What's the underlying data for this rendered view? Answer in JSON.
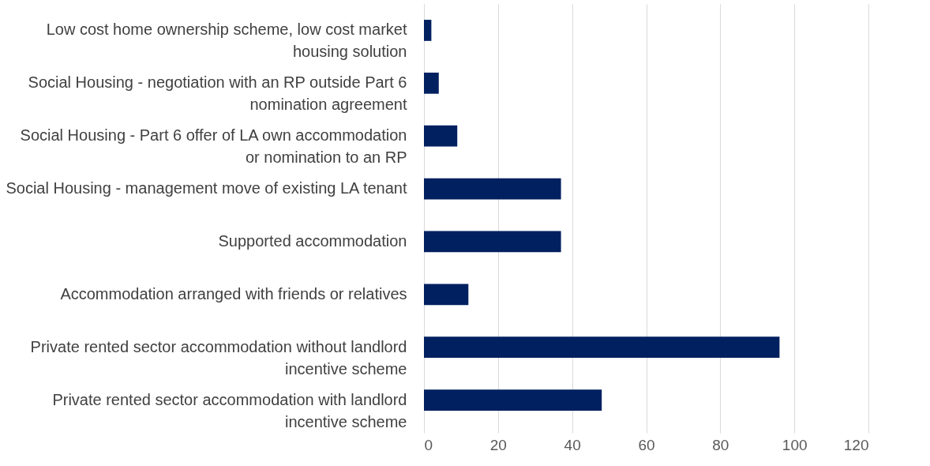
{
  "chart_data": {
    "type": "bar",
    "orientation": "horizontal",
    "categories": [
      "Low cost home ownership scheme, low cost market housing solution",
      "Social Housing - negotiation with an RP outside Part 6 nomination agreement",
      "Social Housing - Part 6 offer of LA own accommodation or nomination to an RP",
      "Social Housing - management move of existing LA tenant",
      "Supported accommodation",
      "Accommodation arranged with friends or relatives",
      "Private rented sector accommodation without landlord incentive scheme",
      "Private rented sector accommodation with landlord incentive scheme"
    ],
    "values": [
      2,
      4,
      9,
      37,
      37,
      12,
      96,
      48
    ],
    "color": "#012060",
    "xlim": [
      0,
      120
    ],
    "xticks": [
      0,
      20,
      40,
      60,
      80,
      100,
      120
    ],
    "grid": "x"
  }
}
